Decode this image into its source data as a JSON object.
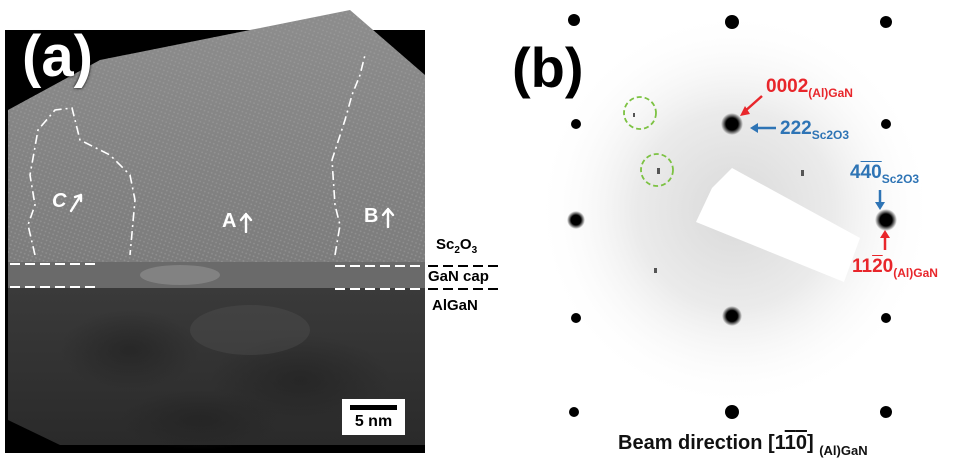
{
  "panel_a": {
    "letter": "(a)",
    "grains": [
      {
        "id": "C",
        "label": "C"
      },
      {
        "id": "A",
        "label": "A"
      },
      {
        "id": "B",
        "label": "B"
      }
    ],
    "layers": {
      "sc2o3_main": "Sc",
      "sc2o3_sub1": "2",
      "sc2o3_mid": "O",
      "sc2o3_sub2": "3",
      "gan_cap": "GaN cap",
      "algan": "AlGaN"
    },
    "scale_bar": "5 nm"
  },
  "panel_b": {
    "letter": "(b)",
    "idx_0002": {
      "main": "0002",
      "sub": "(Al)GaN"
    },
    "idx_222": {
      "main": "222",
      "sub": "Sc2O3"
    },
    "idx_440": {
      "main1": "4",
      "main2": "4",
      "main3": "0",
      "sub": "Sc2O3"
    },
    "idx_1120": {
      "main1": "11",
      "main2": "2",
      "main3": "0",
      "sub": "(Al)GaN"
    },
    "beam_direction": {
      "text": "Beam direction [1",
      "bar1": "1",
      "bar2": "0",
      "close": "0]",
      "sub": "(Al)GaN"
    }
  },
  "colors": {
    "gan_index": "#e8262b",
    "sc2o3_index": "#2e74b5",
    "circle_marks": "#7cc242"
  }
}
